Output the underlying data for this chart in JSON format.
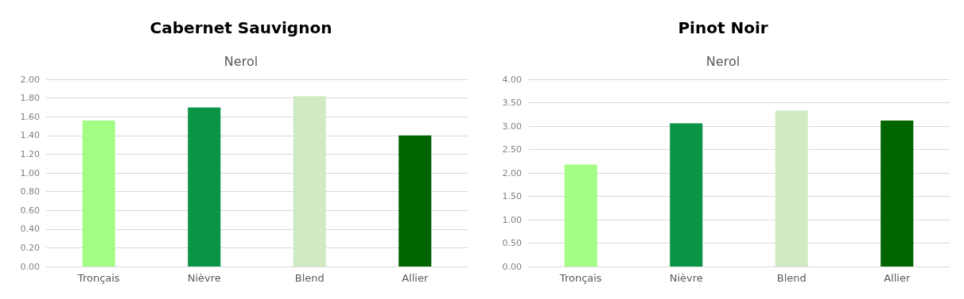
{
  "chart_data": [
    {
      "type": "bar",
      "title": "Cabernet Sauvignon",
      "subtitle": "Nerol",
      "categories": [
        "Tronçais",
        "Nièvre",
        "Blend",
        "Allier"
      ],
      "values": [
        1.56,
        1.7,
        1.82,
        1.4
      ],
      "colors": [
        "#a3fd84",
        "#0c9446",
        "#d0eac3",
        "#006400"
      ],
      "ylim": [
        0,
        2
      ],
      "yticks": [
        {
          "value": 0,
          "label": "0.00"
        },
        {
          "value": 0.2,
          "label": "0.20"
        },
        {
          "value": 0.4,
          "label": "0.40"
        },
        {
          "value": 0.6,
          "label": "0.60"
        },
        {
          "value": 0.8,
          "label": "0.80"
        },
        {
          "value": 1,
          "label": "1.00"
        },
        {
          "value": 1.2,
          "label": "1.20"
        },
        {
          "value": 1.4,
          "label": "1.40"
        },
        {
          "value": 1.6,
          "label": "1.60"
        },
        {
          "value": 1.8,
          "label": "1.80"
        },
        {
          "value": 2,
          "label": "2.00"
        }
      ],
      "grid": "y"
    },
    {
      "type": "bar",
      "title": "Pinot Noir",
      "subtitle": "Nerol",
      "categories": [
        "Tronçais",
        "Nièvre",
        "Blend",
        "Allier"
      ],
      "values": [
        2.18,
        3.06,
        3.33,
        3.12
      ],
      "colors": [
        "#a3fd84",
        "#0c9446",
        "#d0eac3",
        "#006400"
      ],
      "ylim": [
        0,
        4
      ],
      "yticks": [
        {
          "value": 0,
          "label": "0.00"
        },
        {
          "value": 0.5,
          "label": "0.50"
        },
        {
          "value": 1,
          "label": "1.00"
        },
        {
          "value": 1.5,
          "label": "1.50"
        },
        {
          "value": 2,
          "label": "2.00"
        },
        {
          "value": 2.5,
          "label": "2.50"
        },
        {
          "value": 3,
          "label": "3.00"
        },
        {
          "value": 3.5,
          "label": "3.50"
        },
        {
          "value": 4,
          "label": "4.00"
        }
      ],
      "grid": "y"
    }
  ]
}
